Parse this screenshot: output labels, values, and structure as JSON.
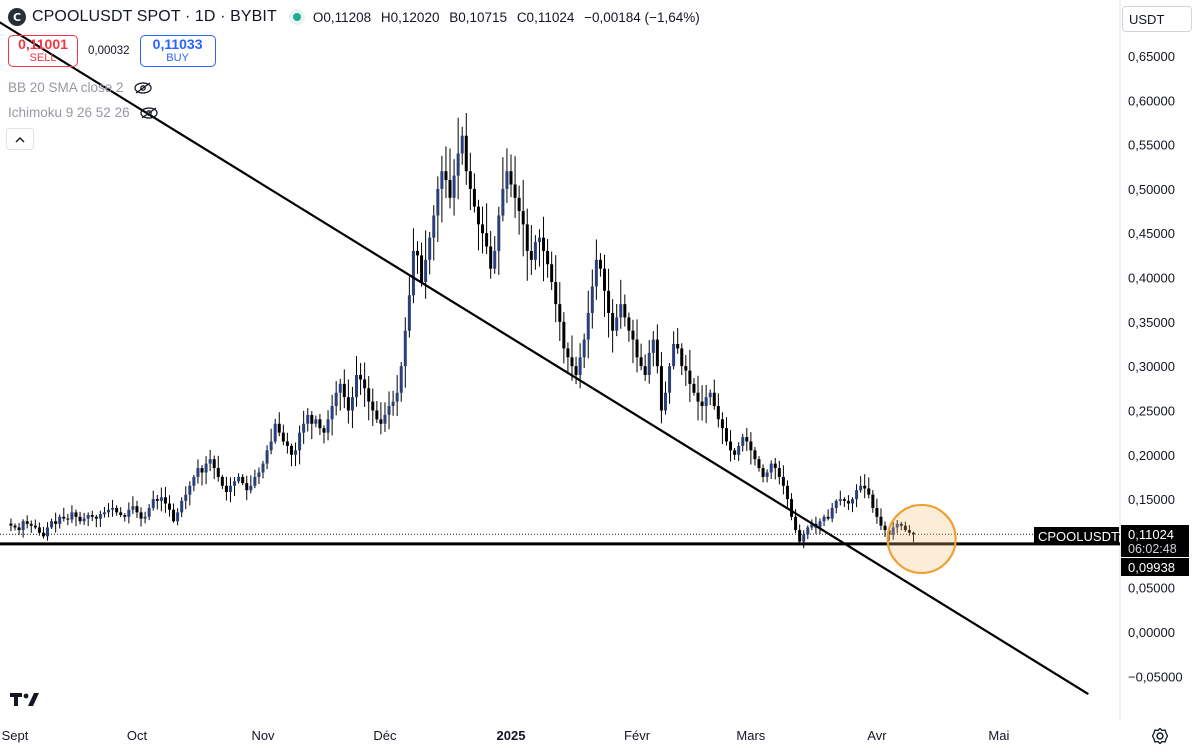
{
  "header": {
    "logo_letter": "C",
    "symbol_title": "CPOOLUSDT SPOT · 1D · BYBIT",
    "open": "O0,11208",
    "high": "H0,12020",
    "low": "B0,10715",
    "close": "C0,11024",
    "change": "−0,00184 (−1,64%)"
  },
  "trade": {
    "sell_price": "0,11001",
    "sell_label": "SELL",
    "spread": "0,00032",
    "buy_price": "0,11033",
    "buy_label": "BUY"
  },
  "indicators": [
    {
      "label": "BB 20 SMA close 2",
      "icon": "eye-off-icon"
    },
    {
      "label": "Ichimoku 9 26 52 26",
      "icon": "eye-off-icon"
    }
  ],
  "currency": "USDT",
  "colors": {
    "up_candle": "#2a3f7e",
    "down_candle": "#000000",
    "trendline": "#000000",
    "highlight_circle": "#f0a030"
  },
  "chart_data": {
    "type": "candlestick",
    "ylim": [
      -0.06,
      0.68
    ],
    "y_ticks": [
      "0,65000",
      "0,60000",
      "0,55000",
      "0,50000",
      "0,45000",
      "0,40000",
      "0,35000",
      "0,30000",
      "0,25000",
      "0,20000",
      "0,15000",
      "0,05000",
      "0,00000",
      "−0,05000"
    ],
    "x_ticks": [
      "Sept",
      "Oct",
      "Nov",
      "Déc",
      "2025",
      "Févr",
      "Mars",
      "Avr",
      "Mai"
    ],
    "price_labels": {
      "symbol": "CPOOLUSDT",
      "last": "0,11024",
      "countdown": "06:02:48",
      "support": "0,09938"
    },
    "support_level": 0.09938,
    "last_price": 0.11024,
    "trendline": {
      "from": {
        "x": "2024-08-24",
        "y": 0.7
      },
      "to": {
        "x": "2025-05-23",
        "y": -0.07
      }
    },
    "highlight": {
      "x": "2025-04-12",
      "y": 0.105
    },
    "series": [
      {
        "start": "2024-08-31",
        "interval_days": 1,
        "close": [
          0.12,
          0.118,
          0.115,
          0.125,
          0.122,
          0.12,
          0.118,
          0.112,
          0.108,
          0.118,
          0.125,
          0.122,
          0.13,
          0.128,
          0.127,
          0.135,
          0.13,
          0.125,
          0.128,
          0.132,
          0.13,
          0.128,
          0.133,
          0.135,
          0.138,
          0.14,
          0.135,
          0.132,
          0.13,
          0.138,
          0.142,
          0.135,
          0.128,
          0.13,
          0.14,
          0.15,
          0.148,
          0.152,
          0.145,
          0.138,
          0.125,
          0.135,
          0.148,
          0.155,
          0.165,
          0.175,
          0.185,
          0.18,
          0.19,
          0.195,
          0.185,
          0.175,
          0.165,
          0.158,
          0.165,
          0.17,
          0.175,
          0.168,
          0.16,
          0.165,
          0.175,
          0.18,
          0.19,
          0.205,
          0.215,
          0.235,
          0.225,
          0.215,
          0.21,
          0.2,
          0.205,
          0.225,
          0.235,
          0.245,
          0.235,
          0.24,
          0.23,
          0.225,
          0.24,
          0.255,
          0.27,
          0.28,
          0.265,
          0.25,
          0.265,
          0.29,
          0.285,
          0.275,
          0.26,
          0.25,
          0.24,
          0.235,
          0.245,
          0.255,
          0.26,
          0.27,
          0.3,
          0.34,
          0.38,
          0.43,
          0.425,
          0.395,
          0.42,
          0.445,
          0.47,
          0.5,
          0.52,
          0.51,
          0.49,
          0.515,
          0.54,
          0.56,
          0.52,
          0.5,
          0.48,
          0.46,
          0.45,
          0.435,
          0.41,
          0.43,
          0.47,
          0.5,
          0.52,
          0.505,
          0.49,
          0.475,
          0.46,
          0.43,
          0.42,
          0.44,
          0.445,
          0.43,
          0.415,
          0.395,
          0.37,
          0.35,
          0.32,
          0.31,
          0.3,
          0.29,
          0.31,
          0.33,
          0.36,
          0.39,
          0.42,
          0.41,
          0.385,
          0.36,
          0.34,
          0.355,
          0.37,
          0.355,
          0.34,
          0.33,
          0.31,
          0.3,
          0.29,
          0.315,
          0.33,
          0.3,
          0.25,
          0.27,
          0.3,
          0.325,
          0.32,
          0.3,
          0.295,
          0.28,
          0.27,
          0.26,
          0.255,
          0.265,
          0.27,
          0.255,
          0.24,
          0.23,
          0.215,
          0.205,
          0.2,
          0.21,
          0.22,
          0.215,
          0.205,
          0.195,
          0.185,
          0.175,
          0.18,
          0.19,
          0.185,
          0.175,
          0.165,
          0.15,
          0.13,
          0.115,
          0.102,
          0.11,
          0.118,
          0.122,
          0.118,
          0.125,
          0.13,
          0.128,
          0.14,
          0.148,
          0.15,
          0.148,
          0.145,
          0.15,
          0.16,
          0.165,
          0.162,
          0.155,
          0.14,
          0.13,
          0.12,
          0.115,
          0.11,
          0.118,
          0.122,
          0.12,
          0.115,
          0.112,
          0.11024
        ]
      }
    ]
  }
}
